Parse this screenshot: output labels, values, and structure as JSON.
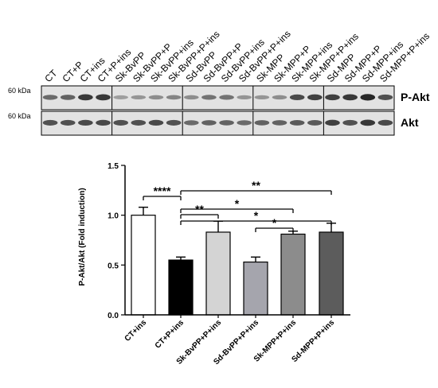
{
  "blot": {
    "lanes": [
      "CT",
      "CT+P",
      "CT+ins",
      "CT+P+ins",
      "Sk-BvPP",
      "Sk-BvPP+P",
      "Sk-BvPP+ins",
      "Sk-BvPP+P+ins",
      "Sd-BvPP",
      "Sd-BvPP+P",
      "Sd-BvPP+ins",
      "Sd-BvPP+P+ins",
      "Sk-MPP",
      "Sk-MPP+P",
      "Sk-MPP+ins",
      "Sk-MPP+P+ins",
      "Sd-MPP",
      "Sd-MPP+P",
      "Sd-MPP+ins",
      "Sd-MPP+P+ins"
    ],
    "rows": [
      {
        "name": "P-Akt",
        "kda": "60 kDa",
        "intensity": [
          0.55,
          0.6,
          0.85,
          0.85,
          0.25,
          0.3,
          0.35,
          0.4,
          0.35,
          0.5,
          0.5,
          0.3,
          0.3,
          0.35,
          0.75,
          0.8,
          0.8,
          0.85,
          0.95,
          0.7
        ]
      },
      {
        "name": "Akt",
        "kda": "60 kDa",
        "intensity": [
          0.7,
          0.7,
          0.75,
          0.75,
          0.7,
          0.7,
          0.75,
          0.7,
          0.55,
          0.6,
          0.6,
          0.55,
          0.6,
          0.6,
          0.65,
          0.65,
          0.8,
          0.7,
          0.85,
          0.75
        ]
      }
    ]
  },
  "chart_data": {
    "type": "bar",
    "ylabel": "P-Akt/Akt (Fold induction)",
    "ylim": [
      0,
      1.5
    ],
    "yticks": [
      "0.0",
      "0.5",
      "1.0",
      "1.5"
    ],
    "categories": [
      "CT+ins",
      "CT+P+ins",
      "Sk-BvPP+P+ins",
      "Sd-BvPP+P+ins",
      "Sk-MPP+P+ins",
      "Sd-MPP+P+ins"
    ],
    "values": [
      1.0,
      0.55,
      0.83,
      0.53,
      0.81,
      0.83
    ],
    "errors": [
      0.08,
      0.03,
      0.11,
      0.05,
      0.03,
      0.09
    ],
    "colors": [
      "#ffffff",
      "#000000",
      "#d4d4d4",
      "#a5a5ad",
      "#8c8c8c",
      "#5c5c5c"
    ],
    "significance": [
      {
        "from": "CT+ins",
        "to": "CT+P+ins",
        "label": "****"
      },
      {
        "from": "CT+P+ins",
        "to": "Sd-MPP+P+ins",
        "label": "**"
      },
      {
        "from": "CT+P+ins",
        "to": "Sk-MPP+P+ins",
        "label": "*"
      },
      {
        "from": "CT+P+ins",
        "to": "Sk-BvPP+P+ins",
        "label": "**"
      },
      {
        "from": "CT+P+ins",
        "to": "Sd-MPP+P+ins",
        "label": "*"
      },
      {
        "from": "Sd-BvPP+P+ins",
        "to": "Sk-MPP+P+ins",
        "label": "*"
      }
    ]
  }
}
